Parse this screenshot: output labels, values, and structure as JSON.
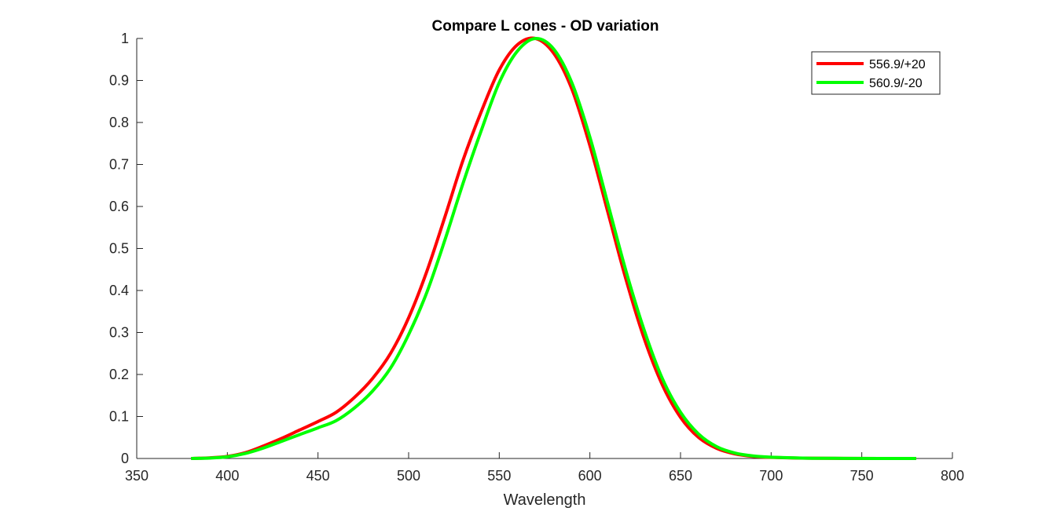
{
  "chart_data": {
    "type": "line",
    "title": "Compare L cones - OD variation",
    "xlabel": "Wavelength",
    "ylabel": "",
    "xlim": [
      350,
      800
    ],
    "ylim": [
      0,
      1
    ],
    "xticks": [
      350,
      400,
      450,
      500,
      550,
      600,
      650,
      700,
      750,
      800
    ],
    "yticks": [
      0,
      0.1,
      0.2,
      0.3,
      0.4,
      0.5,
      0.6,
      0.7,
      0.8,
      0.9,
      1
    ],
    "ytick_labels": [
      "0",
      "0.1",
      "0.2",
      "0.3",
      "0.4",
      "0.5",
      "0.6",
      "0.7",
      "0.8",
      "0.9",
      "1"
    ],
    "grid": false,
    "legend_position": "top-right",
    "series": [
      {
        "name": "556.9/+20",
        "color": "#ff0000",
        "x": [
          380,
          390,
          400,
          410,
          420,
          430,
          440,
          450,
          460,
          470,
          480,
          490,
          500,
          510,
          520,
          530,
          540,
          550,
          560,
          570,
          580,
          590,
          600,
          610,
          620,
          630,
          640,
          650,
          660,
          670,
          680,
          690,
          700,
          720,
          740,
          760,
          780
        ],
        "y": [
          0.0,
          0.0015,
          0.005,
          0.014,
          0.03,
          0.048,
          0.068,
          0.088,
          0.11,
          0.145,
          0.19,
          0.25,
          0.335,
          0.445,
          0.575,
          0.71,
          0.825,
          0.925,
          0.985,
          1.0,
          0.965,
          0.88,
          0.745,
          0.585,
          0.425,
          0.285,
          0.175,
          0.098,
          0.05,
          0.024,
          0.011,
          0.005,
          0.0025,
          0.0006,
          0.0002,
          0.0001,
          0.0
        ]
      },
      {
        "name": "560.9/-20",
        "color": "#00ff00",
        "x": [
          380,
          390,
          400,
          410,
          420,
          430,
          440,
          450,
          460,
          470,
          480,
          490,
          500,
          510,
          520,
          530,
          540,
          550,
          560,
          570,
          580,
          590,
          600,
          610,
          620,
          630,
          640,
          650,
          660,
          670,
          680,
          690,
          700,
          720,
          740,
          760,
          780
        ],
        "y": [
          0.0,
          0.001,
          0.004,
          0.012,
          0.025,
          0.041,
          0.057,
          0.073,
          0.09,
          0.12,
          0.16,
          0.215,
          0.295,
          0.395,
          0.52,
          0.655,
          0.78,
          0.895,
          0.97,
          1.0,
          0.975,
          0.895,
          0.765,
          0.605,
          0.445,
          0.305,
          0.19,
          0.11,
          0.058,
          0.028,
          0.013,
          0.006,
          0.003,
          0.0008,
          0.0003,
          0.0001,
          0.0
        ]
      }
    ]
  }
}
